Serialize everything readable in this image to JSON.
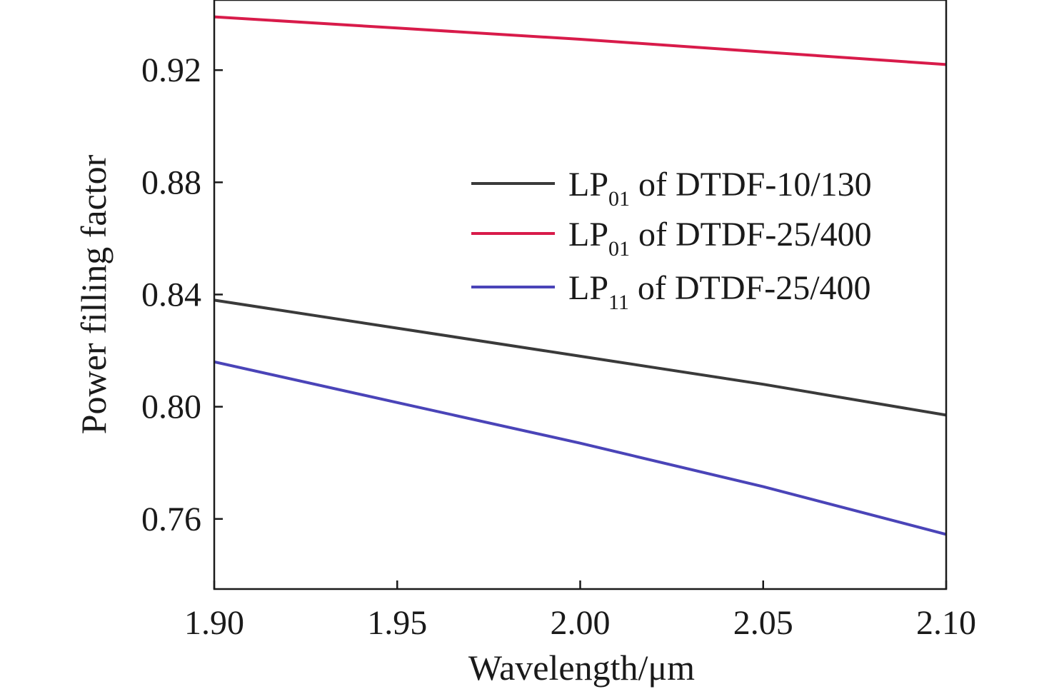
{
  "chart_data": {
    "type": "line",
    "xlabel": "Wavelength/μm",
    "ylabel": "Power filling factor",
    "xlim": [
      1.9,
      2.1
    ],
    "ylim": [
      0.735,
      0.945
    ],
    "xticks": [
      1.9,
      1.95,
      2.0,
      2.05,
      2.1
    ],
    "xtick_labels": [
      "1.90",
      "1.95",
      "2.00",
      "2.05",
      "2.10"
    ],
    "yticks": [
      0.76,
      0.8,
      0.84,
      0.88,
      0.92
    ],
    "ytick_labels": [
      "0.76",
      "0.80",
      "0.84",
      "0.88",
      "0.92"
    ],
    "grid": false,
    "legend_position": "center-right",
    "series": [
      {
        "name": "LP01 of DTDF-10/130",
        "legend_main": "LP",
        "legend_sub": "01",
        "legend_rest": " of DTDF-10/130",
        "color": "#3a3a3a",
        "x": [
          1.9,
          1.95,
          2.0,
          2.05,
          2.1
        ],
        "y": [
          0.838,
          0.828,
          0.818,
          0.808,
          0.797
        ]
      },
      {
        "name": "LP01 of DTDF-25/400",
        "legend_main": "LP",
        "legend_sub": "01",
        "legend_rest": " of DTDF-25/400",
        "color": "#d81b4a",
        "x": [
          1.9,
          1.95,
          2.0,
          2.05,
          2.1
        ],
        "y": [
          0.939,
          0.935,
          0.931,
          0.9265,
          0.922
        ]
      },
      {
        "name": "LP11 of DTDF-25/400",
        "legend_main": "LP",
        "legend_sub": "11",
        "legend_rest": " of DTDF-25/400",
        "color": "#4a44b8",
        "x": [
          1.9,
          1.95,
          2.0,
          2.05,
          2.1
        ],
        "y": [
          0.816,
          0.8015,
          0.787,
          0.7715,
          0.7545
        ]
      }
    ]
  }
}
